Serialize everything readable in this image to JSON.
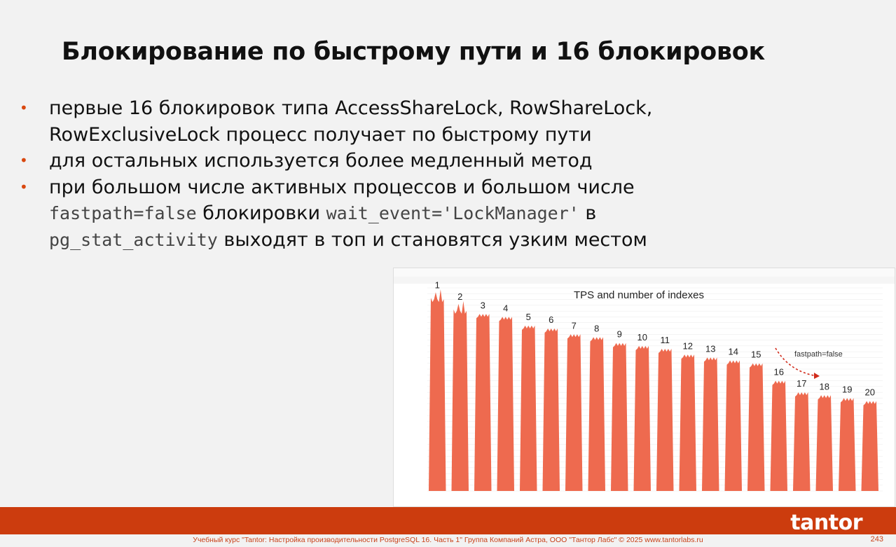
{
  "slide": {
    "title": "Блокирование по быстрому пути  и 16 блокировок",
    "bullets": [
      {
        "text": "первые 16 блокировок типа AccessShareLock, RowShareLock, RowExclusiveLock процесс получает по быстрому пути"
      },
      {
        "text": "для остальных используется более медленный метод"
      },
      {
        "pre": "при большом числе активных процессов и большом числе ",
        "code1": "fastpath=false",
        "mid": " блокировки ",
        "code2": "wait_event='LockManager'",
        "mid2": " в ",
        "code3": "pg_stat_activity",
        "post": " выходят в топ и становятся узким местом"
      }
    ],
    "footer": "Учебный курс \"Tantor: Настройка производительности PostgreSQL 16. Часть 1\" Группа Компаний Астра, ООО \"Тантор Лабс\" © 2025  www.tantorlabs.ru",
    "page_number": "243",
    "logo": "tantor"
  },
  "chart_data": {
    "type": "area",
    "title": "TPS and number of indexes",
    "annotation": "fastpath=false",
    "categories": [
      "1",
      "2",
      "3",
      "4",
      "5",
      "6",
      "7",
      "8",
      "9",
      "10",
      "11",
      "12",
      "13",
      "14",
      "15",
      "16",
      "17",
      "18",
      "19",
      "20"
    ],
    "values": [
      68,
      64,
      61,
      60,
      57,
      56,
      54,
      53,
      51,
      50,
      49,
      47,
      46,
      45,
      44,
      38,
      34,
      33,
      32,
      31
    ],
    "ylim": [
      0,
      70
    ],
    "series_color": "#ee6a4f",
    "grid": true
  }
}
